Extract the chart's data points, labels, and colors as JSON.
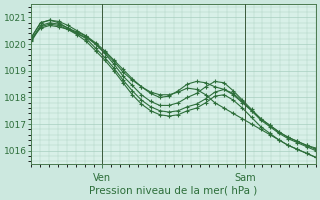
{
  "title": "Pression niveau de la mer( hPa )",
  "background_color": "#cce8df",
  "plot_bg": "#d8f0e8",
  "grid_color": "#a8cfc0",
  "line_color": "#2d6e3a",
  "ylim": [
    1015.5,
    1021.5
  ],
  "yticks": [
    1016,
    1017,
    1018,
    1019,
    1020,
    1021
  ],
  "xlim": [
    0,
    96
  ],
  "xtick_labels_pos": [
    24,
    72
  ],
  "xtick_labels": [
    "Ven",
    "Sam"
  ],
  "vlines": [
    24,
    72
  ],
  "series": [
    [
      1020.2,
      1020.6,
      1020.7,
      1020.65,
      1020.55,
      1020.4,
      1020.25,
      1020.0,
      1019.7,
      1019.35,
      1018.95,
      1018.65,
      1018.4,
      1018.2,
      1018.1,
      1018.1,
      1018.2,
      1018.35,
      1018.3,
      1018.1,
      1017.8,
      1017.6,
      1017.4,
      1017.2,
      1017.0,
      1016.8,
      1016.6,
      1016.4,
      1016.2,
      1016.05,
      1015.9,
      1015.75
    ],
    [
      1020.25,
      1020.8,
      1020.9,
      1020.8,
      1020.6,
      1020.45,
      1020.3,
      1020.05,
      1019.75,
      1019.4,
      1019.05,
      1018.7,
      1018.4,
      1018.15,
      1018.0,
      1018.05,
      1018.25,
      1018.5,
      1018.6,
      1018.55,
      1018.4,
      1018.3,
      1018.1,
      1017.8,
      1017.5,
      1017.2,
      1016.95,
      1016.7,
      1016.5,
      1016.35,
      1016.2,
      1016.1
    ],
    [
      1020.25,
      1020.8,
      1020.9,
      1020.85,
      1020.7,
      1020.5,
      1020.3,
      1020.0,
      1019.65,
      1019.25,
      1018.8,
      1018.45,
      1018.1,
      1017.85,
      1017.7,
      1017.7,
      1017.8,
      1018.0,
      1018.15,
      1018.4,
      1018.6,
      1018.55,
      1018.25,
      1017.9,
      1017.55,
      1017.2,
      1016.95,
      1016.7,
      1016.5,
      1016.35,
      1016.2,
      1016.05
    ],
    [
      1020.15,
      1020.7,
      1020.8,
      1020.75,
      1020.6,
      1020.4,
      1020.2,
      1019.85,
      1019.5,
      1019.1,
      1018.65,
      1018.25,
      1017.9,
      1017.65,
      1017.5,
      1017.45,
      1017.5,
      1017.65,
      1017.75,
      1017.95,
      1018.2,
      1018.3,
      1018.15,
      1017.85,
      1017.5,
      1017.15,
      1016.9,
      1016.65,
      1016.45,
      1016.3,
      1016.15,
      1016.0
    ],
    [
      1020.1,
      1020.65,
      1020.75,
      1020.7,
      1020.55,
      1020.35,
      1020.1,
      1019.75,
      1019.4,
      1019.0,
      1018.55,
      1018.1,
      1017.75,
      1017.5,
      1017.35,
      1017.3,
      1017.35,
      1017.5,
      1017.6,
      1017.8,
      1018.05,
      1018.1,
      1017.9,
      1017.6,
      1017.25,
      1016.9,
      1016.65,
      1016.4,
      1016.2,
      1016.05,
      1015.9,
      1015.75
    ]
  ],
  "marker": "+",
  "marker_size": 3,
  "linewidth": 0.8
}
